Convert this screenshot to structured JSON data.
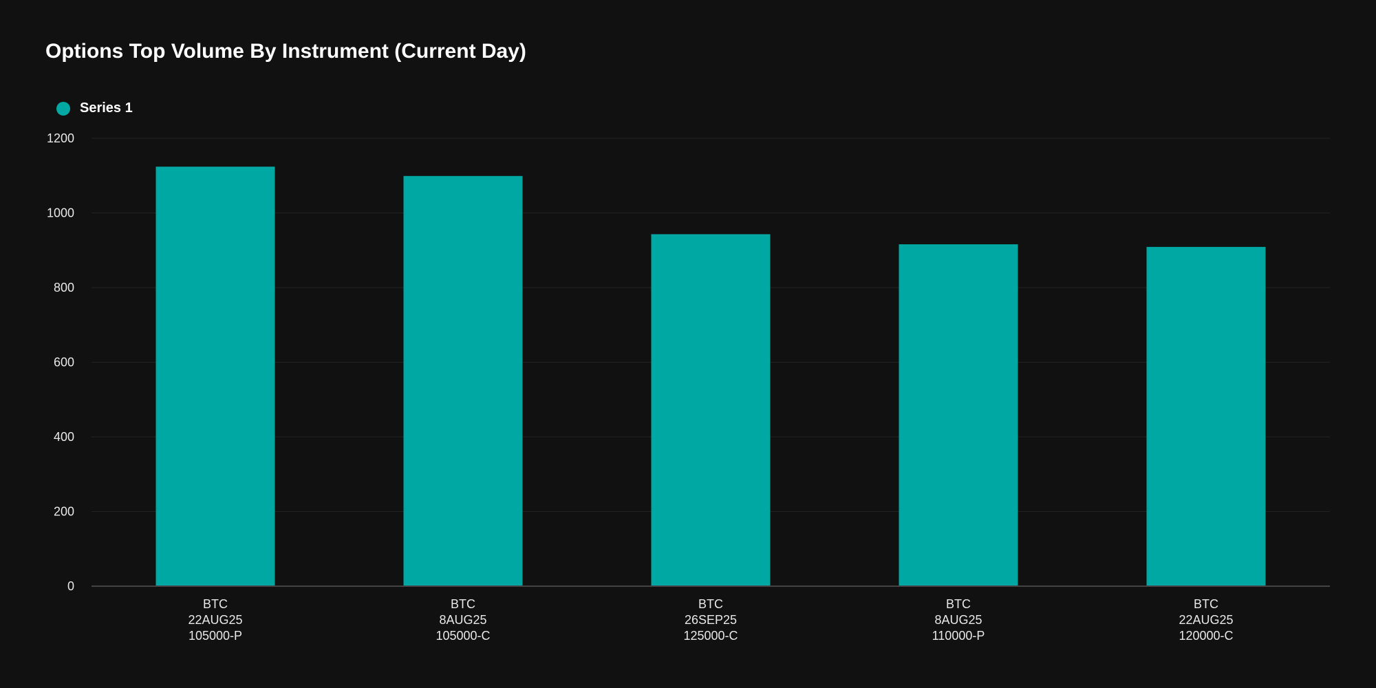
{
  "chart_data": {
    "type": "bar",
    "title": "Options Top Volume By Instrument (Current Day)",
    "xlabel": "",
    "ylabel": "",
    "ylim": [
      0,
      1200
    ],
    "yticks": [
      0,
      200,
      400,
      600,
      800,
      1000,
      1200
    ],
    "grid": true,
    "legend_placement": "top-left",
    "categories": [
      [
        "BTC",
        "22AUG25",
        "105000-P"
      ],
      [
        "BTC",
        "8AUG25",
        "105000-C"
      ],
      [
        "BTC",
        "26SEP25",
        "125000-C"
      ],
      [
        "BTC",
        "8AUG25",
        "110000-P"
      ],
      [
        "BTC",
        "22AUG25",
        "120000-C"
      ]
    ],
    "series": [
      {
        "name": "Series 1",
        "color": "#00a8a3",
        "values": [
          1124,
          1099,
          943,
          916,
          909
        ]
      }
    ]
  },
  "colors": {
    "background": "#111111",
    "gridline": "#222222",
    "axis": "#444444"
  }
}
